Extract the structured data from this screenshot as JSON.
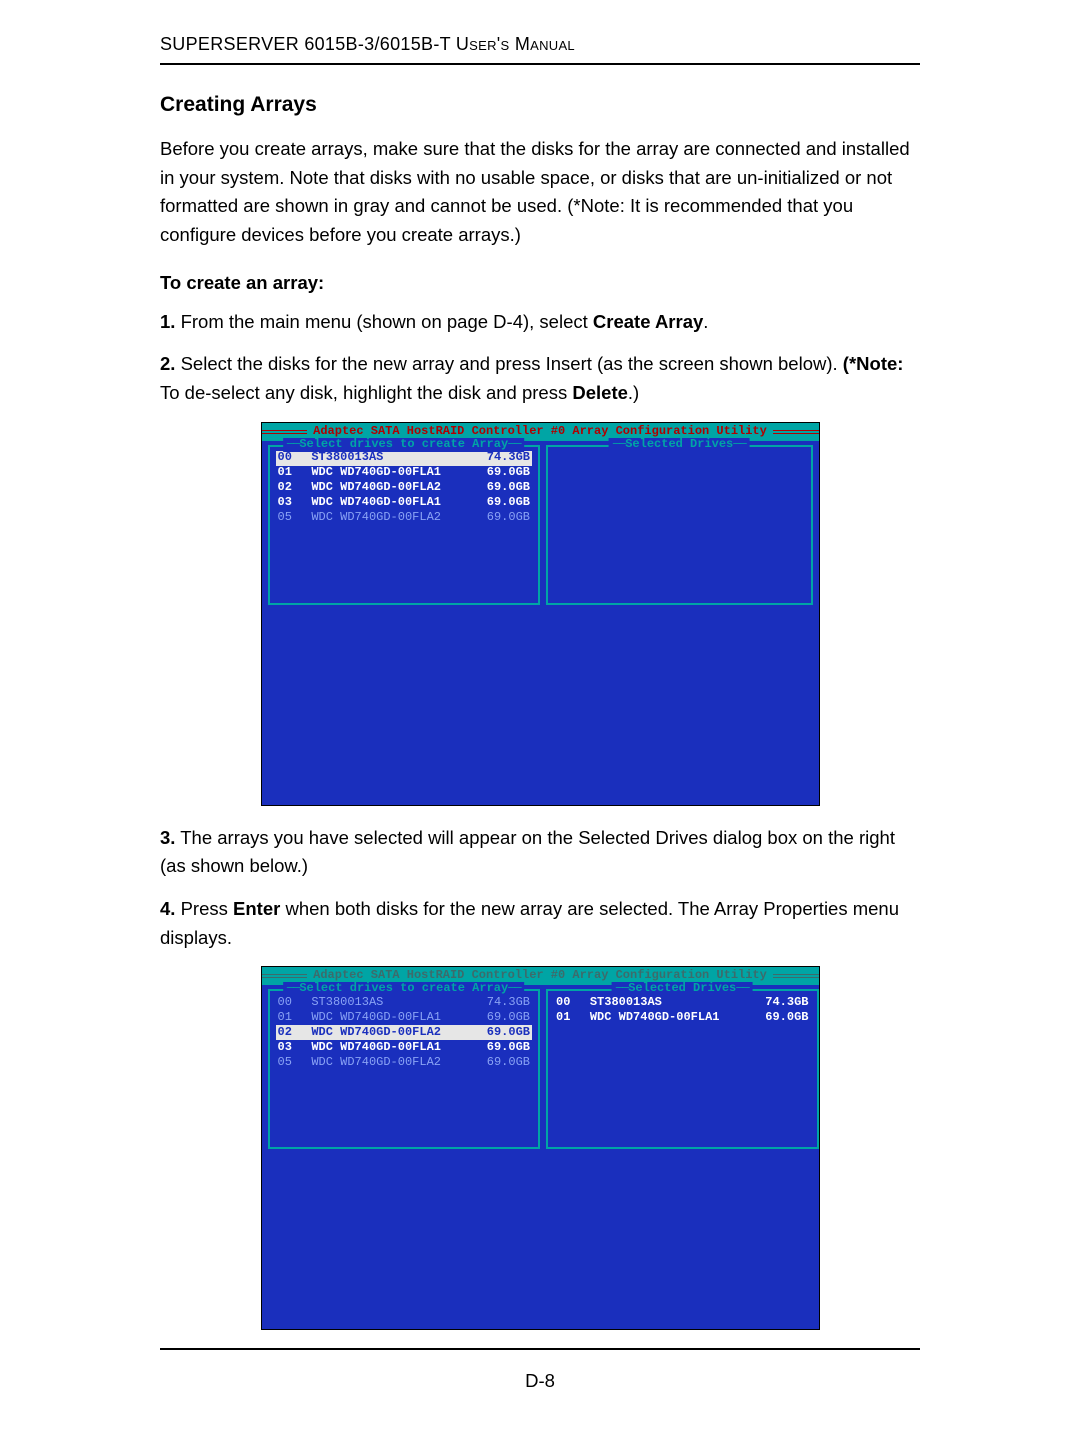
{
  "header": "SUPERSERVER 6015B-3/6015B-T User's Manual",
  "section_title": "Creating Arrays",
  "intro": "Before you create arrays, make sure that the disks for the array are connected and installed in your system. Note that disks with no usable space, or disks that are un-initialized or not formatted are shown in gray and cannot be used. (*Note: It is recommended that you configure devices before you create arrays.)",
  "subhead": "To create an array:",
  "step1_num": "1.",
  "step1_a": " From the main menu (shown on page D-4), select ",
  "step1_kw": "Create Array",
  "step1_b": ".",
  "step2_num": "2.",
  "step2_a": " Select the disks for the new array and press Insert (as the screen shown below). ",
  "step2_kw1": "(*Note:",
  "step2_b": " To de-select any disk, highlight the disk and press ",
  "step2_kw2": "Delete",
  "step2_c": ".)",
  "step3_num": "3.",
  "step3_a": " The arrays you have selected will appear on the Selected Drives dialog box on the right (as shown below.)",
  "step4_num": "4.",
  "step4_a": " Press ",
  "step4_kw": "Enter",
  "step4_b": " when both disks for the new array are selected. The Array Properties menu displays.",
  "page_number": "D-8",
  "screenshot": {
    "title_bar": "Adaptec SATA HostRAID Controller #0 Array Configuration Utility",
    "left_label": "Select drives to create Array",
    "right_label": "Selected Drives",
    "colors": {
      "bg": "#1a2fbd",
      "border": "#00a5a5",
      "titlebar_bg": "#00a5a5",
      "titlebar_fg": "#b00000",
      "text": "#ffffff",
      "dim_text": "#8aa3f5",
      "sel_bg": "#e6e6e6",
      "sel_fg": "#1a2fbd"
    },
    "fig1": {
      "left_drives": [
        {
          "id": "00",
          "name": "ST380013AS",
          "size": "74.3GB",
          "state": "sel"
        },
        {
          "id": "01",
          "name": "WDC WD740GD-00FLA1",
          "size": "69.0GB",
          "state": "norm"
        },
        {
          "id": "02",
          "name": "WDC WD740GD-00FLA2",
          "size": "69.0GB",
          "state": "norm"
        },
        {
          "id": "03",
          "name": "WDC WD740GD-00FLA1",
          "size": "69.0GB",
          "state": "norm"
        },
        {
          "id": "05",
          "name": "WDC WD740GD-00FLA2",
          "size": "69.0GB",
          "state": "dim"
        }
      ],
      "right_drives": []
    },
    "fig2": {
      "left_drives": [
        {
          "id": "00",
          "name": "ST380013AS",
          "size": "74.3GB",
          "state": "dim"
        },
        {
          "id": "01",
          "name": "WDC WD740GD-00FLA1",
          "size": "69.0GB",
          "state": "dim"
        },
        {
          "id": "02",
          "name": "WDC WD740GD-00FLA2",
          "size": "69.0GB",
          "state": "sel"
        },
        {
          "id": "03",
          "name": "WDC WD740GD-00FLA1",
          "size": "69.0GB",
          "state": "norm"
        },
        {
          "id": "05",
          "name": "WDC WD740GD-00FLA2",
          "size": "69.0GB",
          "state": "dim"
        }
      ],
      "right_drives": [
        {
          "id": "00",
          "name": "ST380013AS",
          "size": "74.3GB",
          "state": "norm"
        },
        {
          "id": "01",
          "name": "WDC WD740GD-00FLA1",
          "size": "69.0GB",
          "state": "norm"
        }
      ]
    }
  }
}
